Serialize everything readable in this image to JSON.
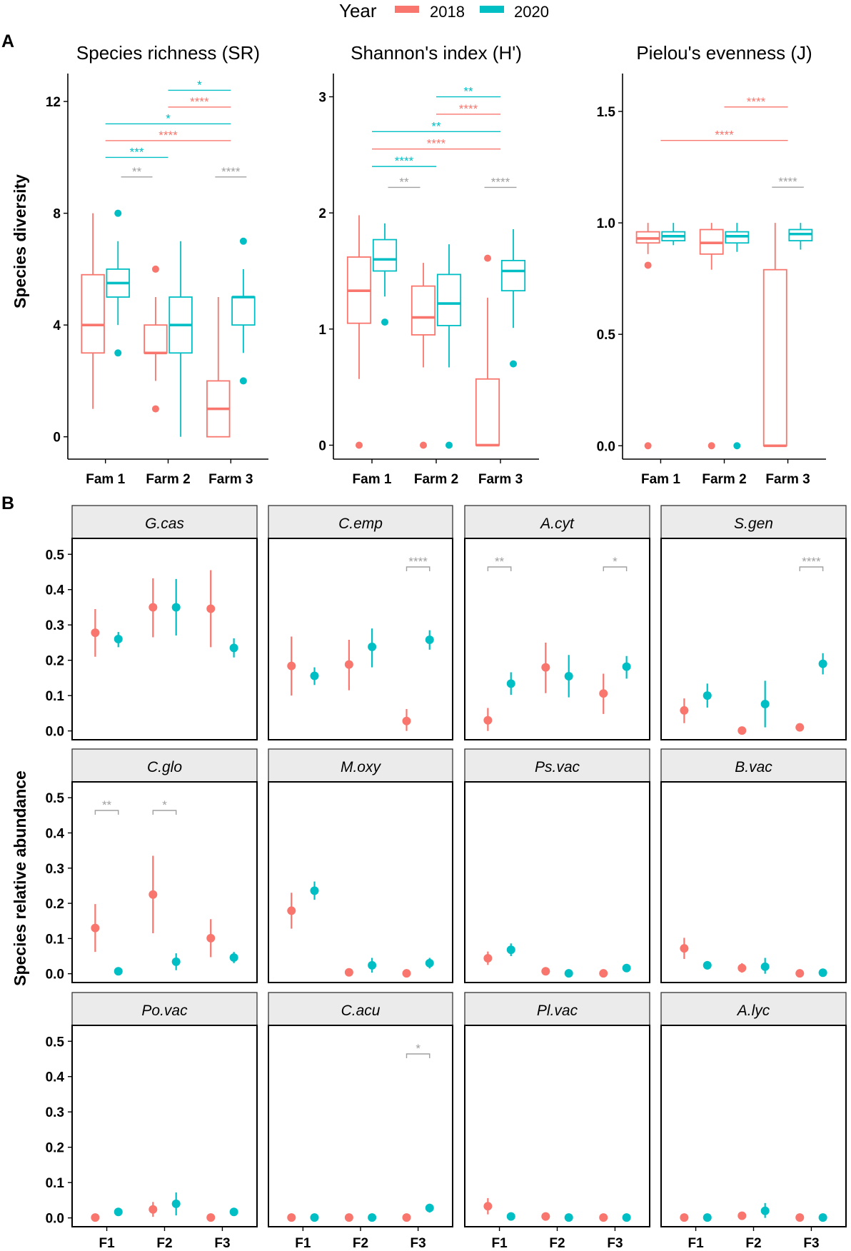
{
  "legend": {
    "title": "Year",
    "labels": [
      "2018",
      "2020"
    ]
  },
  "colors": {
    "y2018": "#F8766D",
    "y2020": "#00BFC4",
    "grey": "#A0A0A0",
    "strip": "#EBEBEB"
  },
  "panel_a_label": "A",
  "panel_b_label": "B",
  "chart_data": [
    {
      "type": "boxplot",
      "title": "Species richness (SR)",
      "ylabel": "Species diversity",
      "categories": [
        "Fam 1",
        "Farm 2",
        "Farm 3"
      ],
      "ylim": [
        -0.8,
        13.0
      ],
      "yticks": [
        0,
        4,
        8,
        12
      ],
      "series": [
        {
          "name": "2018",
          "boxes": [
            {
              "min": 1,
              "q1": 3,
              "median": 4,
              "q3": 5.8,
              "max": 8,
              "outliers": []
            },
            {
              "min": 2,
              "q1": 3,
              "median": 3,
              "q3": 4,
              "max": 5,
              "outliers": [
                6,
                1
              ]
            },
            {
              "min": 0,
              "q1": 0,
              "median": 1,
              "q3": 2,
              "max": 5,
              "outliers": []
            }
          ]
        },
        {
          "name": "2020",
          "boxes": [
            {
              "min": 4,
              "q1": 5,
              "median": 5.5,
              "q3": 6,
              "max": 7,
              "outliers": [
                8,
                3
              ]
            },
            {
              "min": 0,
              "q1": 3,
              "median": 4,
              "q3": 5,
              "max": 7,
              "outliers": []
            },
            {
              "min": 3,
              "q1": 4,
              "median": 5,
              "q3": 5,
              "max": 6,
              "outliers": [
                7,
                2
              ]
            }
          ]
        }
      ],
      "brackets": [
        {
          "from": 1.25,
          "to": 1.75,
          "y": 9.3,
          "label": "**",
          "color": "grey"
        },
        {
          "from": 2.75,
          "to": 3.25,
          "y": 9.3,
          "label": "****",
          "color": "grey"
        },
        {
          "from": 1,
          "to": 2,
          "y": 10.0,
          "label": "***",
          "color": "y2020"
        },
        {
          "from": 1,
          "to": 3,
          "y": 10.6,
          "label": "****",
          "color": "y2018"
        },
        {
          "from": 1,
          "to": 3,
          "y": 11.2,
          "label": "*",
          "color": "y2020"
        },
        {
          "from": 2,
          "to": 3,
          "y": 11.8,
          "label": "****",
          "color": "y2018"
        },
        {
          "from": 2,
          "to": 3,
          "y": 12.4,
          "label": "*",
          "color": "y2020"
        }
      ]
    },
    {
      "type": "boxplot",
      "title": "Shannon's index (H')",
      "categories": [
        "Fam 1",
        "Farm 2",
        "Farm 3"
      ],
      "ylim": [
        -0.12,
        3.2
      ],
      "yticks": [
        0,
        1,
        2,
        3
      ],
      "series": [
        {
          "name": "2018",
          "boxes": [
            {
              "min": 0.57,
              "q1": 1.05,
              "median": 1.33,
              "q3": 1.62,
              "max": 1.98,
              "outliers": [
                0
              ]
            },
            {
              "min": 0.67,
              "q1": 0.95,
              "median": 1.1,
              "q3": 1.37,
              "max": 1.57,
              "outliers": [
                0
              ]
            },
            {
              "min": 0,
              "q1": 0,
              "median": 0,
              "q3": 0.57,
              "max": 1.27,
              "outliers": [
                1.61
              ]
            }
          ]
        },
        {
          "name": "2020",
          "boxes": [
            {
              "min": 1.28,
              "q1": 1.5,
              "median": 1.6,
              "q3": 1.77,
              "max": 1.91,
              "outliers": [
                1.06
              ]
            },
            {
              "min": 0.67,
              "q1": 1.03,
              "median": 1.22,
              "q3": 1.47,
              "max": 1.73,
              "outliers": [
                0
              ]
            },
            {
              "min": 1.01,
              "q1": 1.33,
              "median": 1.5,
              "q3": 1.59,
              "max": 1.86,
              "outliers": [
                0.7
              ]
            }
          ]
        }
      ],
      "brackets": [
        {
          "from": 1.25,
          "to": 1.75,
          "y": 2.22,
          "label": "**",
          "color": "grey"
        },
        {
          "from": 2.75,
          "to": 3.25,
          "y": 2.22,
          "label": "****",
          "color": "grey"
        },
        {
          "from": 1,
          "to": 2,
          "y": 2.4,
          "label": "****",
          "color": "y2020"
        },
        {
          "from": 1,
          "to": 3,
          "y": 2.55,
          "label": "****",
          "color": "y2018"
        },
        {
          "from": 1,
          "to": 3,
          "y": 2.7,
          "label": "**",
          "color": "y2020"
        },
        {
          "from": 2,
          "to": 3,
          "y": 2.85,
          "label": "****",
          "color": "y2018"
        },
        {
          "from": 2,
          "to": 3,
          "y": 3.0,
          "label": "**",
          "color": "y2020"
        }
      ]
    },
    {
      "type": "boxplot",
      "title": "Pielou's evenness (J)",
      "categories": [
        "Fam 1",
        "Farm 2",
        "Farm 3"
      ],
      "ylim": [
        -0.06,
        1.67
      ],
      "yticks": [
        0.0,
        0.5,
        1.0,
        1.5
      ],
      "ytick_labels": [
        "0.0",
        "0.5",
        "1.0",
        "1.5"
      ],
      "series": [
        {
          "name": "2018",
          "boxes": [
            {
              "min": 0.86,
              "q1": 0.91,
              "median": 0.93,
              "q3": 0.96,
              "max": 1.0,
              "outliers": [
                0.81,
                0
              ]
            },
            {
              "min": 0.79,
              "q1": 0.86,
              "median": 0.91,
              "q3": 0.97,
              "max": 1.0,
              "outliers": [
                0
              ]
            },
            {
              "min": 0,
              "q1": 0,
              "median": 0,
              "q3": 0.79,
              "max": 1.0,
              "outliers": []
            }
          ]
        },
        {
          "name": "2020",
          "boxes": [
            {
              "min": 0.9,
              "q1": 0.92,
              "median": 0.94,
              "q3": 0.96,
              "max": 1.0,
              "outliers": []
            },
            {
              "min": 0.87,
              "q1": 0.91,
              "median": 0.94,
              "q3": 0.96,
              "max": 1.0,
              "outliers": [
                0
              ]
            },
            {
              "min": 0.88,
              "q1": 0.92,
              "median": 0.95,
              "q3": 0.97,
              "max": 1.0,
              "outliers": []
            }
          ]
        }
      ],
      "brackets": [
        {
          "from": 2.75,
          "to": 3.25,
          "y": 1.16,
          "label": "****",
          "color": "grey"
        },
        {
          "from": 1,
          "to": 3,
          "y": 1.37,
          "label": "****",
          "color": "y2018"
        },
        {
          "from": 2,
          "to": 3,
          "y": 1.52,
          "label": "****",
          "color": "y2018"
        }
      ]
    },
    {
      "type": "pointrange",
      "ylabel": "Species relative abundance",
      "categories": [
        "F1",
        "F2",
        "F3"
      ],
      "ylim": [
        -0.025,
        0.545
      ],
      "yticks": [
        0.0,
        0.1,
        0.2,
        0.3,
        0.4,
        0.5
      ],
      "ytick_labels": [
        "0.0",
        "0.1",
        "0.2",
        "0.3",
        "0.4",
        "0.5"
      ],
      "series_names": [
        "2018",
        "2020"
      ],
      "facets": [
        {
          "title": "G.cas",
          "y2018": [
            [
              0.278,
              0.21,
              0.345
            ],
            [
              0.35,
              0.265,
              0.432
            ],
            [
              0.346,
              0.237,
              0.455
            ]
          ],
          "y2020": [
            [
              0.26,
              0.237,
              0.28
            ],
            [
              0.35,
              0.27,
              0.43
            ],
            [
              0.235,
              0.208,
              0.262
            ]
          ],
          "brackets": []
        },
        {
          "title": "C.emp",
          "y2018": [
            [
              0.184,
              0.1,
              0.267
            ],
            [
              0.188,
              0.115,
              0.258
            ],
            [
              0.028,
              0.0,
              0.062
            ]
          ],
          "y2020": [
            [
              0.156,
              0.13,
              0.18
            ],
            [
              0.238,
              0.18,
              0.29
            ],
            [
              0.258,
              0.23,
              0.285
            ]
          ],
          "brackets": [
            {
              "group": 3,
              "label": "****"
            }
          ]
        },
        {
          "title": "A.cyt",
          "y2018": [
            [
              0.03,
              0.0,
              0.065
            ],
            [
              0.18,
              0.107,
              0.25
            ],
            [
              0.106,
              0.048,
              0.162
            ]
          ],
          "y2020": [
            [
              0.134,
              0.102,
              0.166
            ],
            [
              0.155,
              0.095,
              0.215
            ],
            [
              0.182,
              0.148,
              0.212
            ]
          ],
          "brackets": [
            {
              "group": 1,
              "label": "**"
            },
            {
              "group": 3,
              "label": "*"
            }
          ]
        },
        {
          "title": "S.gen",
          "y2018": [
            [
              0.058,
              0.022,
              0.092
            ],
            [
              0.001,
              0.0,
              0.002
            ],
            [
              0.01,
              0.004,
              0.016
            ]
          ],
          "y2020": [
            [
              0.1,
              0.066,
              0.134
            ],
            [
              0.076,
              0.01,
              0.142
            ],
            [
              0.19,
              0.16,
              0.22
            ]
          ],
          "brackets": [
            {
              "group": 3,
              "label": "****"
            }
          ]
        },
        {
          "title": "C.glo",
          "y2018": [
            [
              0.13,
              0.062,
              0.198
            ],
            [
              0.225,
              0.115,
              0.335
            ],
            [
              0.101,
              0.047,
              0.155
            ]
          ],
          "y2020": [
            [
              0.007,
              0.003,
              0.012
            ],
            [
              0.034,
              0.01,
              0.058
            ],
            [
              0.046,
              0.03,
              0.062
            ]
          ],
          "brackets": [
            {
              "group": 1,
              "label": "**"
            },
            {
              "group": 2,
              "label": "*"
            }
          ]
        },
        {
          "title": "M.oxy",
          "y2018": [
            [
              0.179,
              0.128,
              0.23
            ],
            [
              0.004,
              0.0,
              0.008
            ],
            [
              0.001,
              0.0,
              0.002
            ]
          ],
          "y2020": [
            [
              0.236,
              0.21,
              0.262
            ],
            [
              0.024,
              0.003,
              0.045
            ],
            [
              0.03,
              0.015,
              0.045
            ]
          ],
          "brackets": []
        },
        {
          "title": "Ps.vac",
          "y2018": [
            [
              0.044,
              0.025,
              0.063
            ],
            [
              0.007,
              0.0,
              0.014
            ],
            [
              0.001,
              0.0,
              0.002
            ]
          ],
          "y2020": [
            [
              0.068,
              0.05,
              0.086
            ],
            [
              0.001,
              0.0,
              0.002
            ],
            [
              0.016,
              0.01,
              0.022
            ]
          ],
          "brackets": []
        },
        {
          "title": "B.vac",
          "y2018": [
            [
              0.072,
              0.042,
              0.102
            ],
            [
              0.016,
              0.003,
              0.03
            ],
            [
              0.001,
              0.0,
              0.002
            ]
          ],
          "y2020": [
            [
              0.024,
              0.012,
              0.036
            ],
            [
              0.02,
              0.0,
              0.045
            ],
            [
              0.003,
              0.0,
              0.006
            ]
          ],
          "brackets": []
        },
        {
          "title": "Po.vac",
          "y2018": [
            [
              0.001,
              0.0,
              0.002
            ],
            [
              0.024,
              0.003,
              0.045
            ],
            [
              0.001,
              0.0,
              0.002
            ]
          ],
          "y2020": [
            [
              0.017,
              0.008,
              0.026
            ],
            [
              0.04,
              0.007,
              0.072
            ],
            [
              0.017,
              0.01,
              0.024
            ]
          ],
          "brackets": []
        },
        {
          "title": "C.acu",
          "y2018": [
            [
              0.001,
              0.0,
              0.002
            ],
            [
              0.001,
              0.0,
              0.002
            ],
            [
              0.001,
              0.0,
              0.002
            ]
          ],
          "y2020": [
            [
              0.001,
              0.0,
              0.002
            ],
            [
              0.001,
              0.0,
              0.002
            ],
            [
              0.028,
              0.015,
              0.04
            ]
          ],
          "brackets": [
            {
              "group": 3,
              "label": "*"
            }
          ]
        },
        {
          "title": "Pl.vac",
          "y2018": [
            [
              0.033,
              0.01,
              0.056
            ],
            [
              0.004,
              0.0,
              0.008
            ],
            [
              0.001,
              0.0,
              0.002
            ]
          ],
          "y2020": [
            [
              0.004,
              0.0,
              0.008
            ],
            [
              0.001,
              0.0,
              0.002
            ],
            [
              0.001,
              0.0,
              0.002
            ]
          ],
          "brackets": []
        },
        {
          "title": "A.lyc",
          "y2018": [
            [
              0.001,
              0.0,
              0.002
            ],
            [
              0.006,
              0.0,
              0.012
            ],
            [
              0.001,
              0.0,
              0.002
            ]
          ],
          "y2020": [
            [
              0.001,
              0.0,
              0.002
            ],
            [
              0.02,
              0.0,
              0.042
            ],
            [
              0.001,
              0.0,
              0.002
            ]
          ],
          "brackets": []
        }
      ]
    }
  ]
}
